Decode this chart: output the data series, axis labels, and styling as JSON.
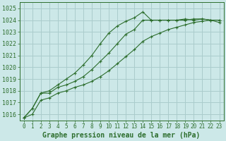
{
  "background_color": "#cce8e8",
  "grid_color": "#aacccc",
  "line_color": "#2d6e2d",
  "marker_color": "#2d6e2d",
  "xlabel": "Graphe pression niveau de la mer (hPa)",
  "xlabel_fontsize": 7,
  "xlabel_bold": true,
  "ytick_fontsize": 6,
  "xtick_fontsize": 5.5,
  "ylim": [
    1015.5,
    1025.5
  ],
  "xlim": [
    -0.5,
    23.5
  ],
  "yticks": [
    1016,
    1017,
    1018,
    1019,
    1020,
    1021,
    1022,
    1023,
    1024,
    1025
  ],
  "xticks": [
    0,
    1,
    2,
    3,
    4,
    5,
    6,
    7,
    8,
    9,
    10,
    11,
    12,
    13,
    14,
    15,
    16,
    17,
    18,
    19,
    20,
    21,
    22,
    23
  ],
  "series": [
    {
      "x": [
        0,
        1,
        2,
        3,
        4,
        5,
        6,
        7,
        8,
        9,
        10,
        11,
        12,
        13,
        14,
        15,
        16,
        17,
        18,
        19,
        20,
        21,
        22,
        23
      ],
      "y": [
        1015.7,
        1016.5,
        1017.8,
        1018.0,
        1018.5,
        1019.0,
        1019.5,
        1020.2,
        1021.0,
        1022.0,
        1022.9,
        1023.5,
        1023.9,
        1024.2,
        1024.7,
        1024.0,
        1024.0,
        1024.0,
        1024.0,
        1024.1,
        1024.0,
        1024.1,
        1024.0,
        1024.0
      ]
    },
    {
      "x": [
        0,
        1,
        2,
        3,
        4,
        5,
        6,
        7,
        8,
        9,
        10,
        11,
        12,
        13,
        14,
        15,
        16,
        17,
        18,
        19,
        20,
        21,
        22,
        23
      ],
      "y": [
        1015.7,
        1016.5,
        1017.8,
        1017.8,
        1018.3,
        1018.5,
        1018.8,
        1019.2,
        1019.8,
        1020.5,
        1021.2,
        1022.0,
        1022.8,
        1023.2,
        1024.0,
        1024.0,
        1024.0,
        1024.0,
        1024.0,
        1024.0,
        1024.1,
        1024.1,
        1024.0,
        1024.0
      ]
    },
    {
      "x": [
        0,
        1,
        2,
        3,
        4,
        5,
        6,
        7,
        8,
        9,
        10,
        11,
        12,
        13,
        14,
        15,
        16,
        17,
        18,
        19,
        20,
        21,
        22,
        23
      ],
      "y": [
        1015.7,
        1016.0,
        1017.2,
        1017.4,
        1017.8,
        1018.0,
        1018.3,
        1018.5,
        1018.8,
        1019.2,
        1019.7,
        1020.3,
        1020.9,
        1021.5,
        1022.2,
        1022.6,
        1022.9,
        1023.2,
        1023.4,
        1023.6,
        1023.8,
        1023.9,
        1024.0,
        1023.8
      ]
    }
  ]
}
